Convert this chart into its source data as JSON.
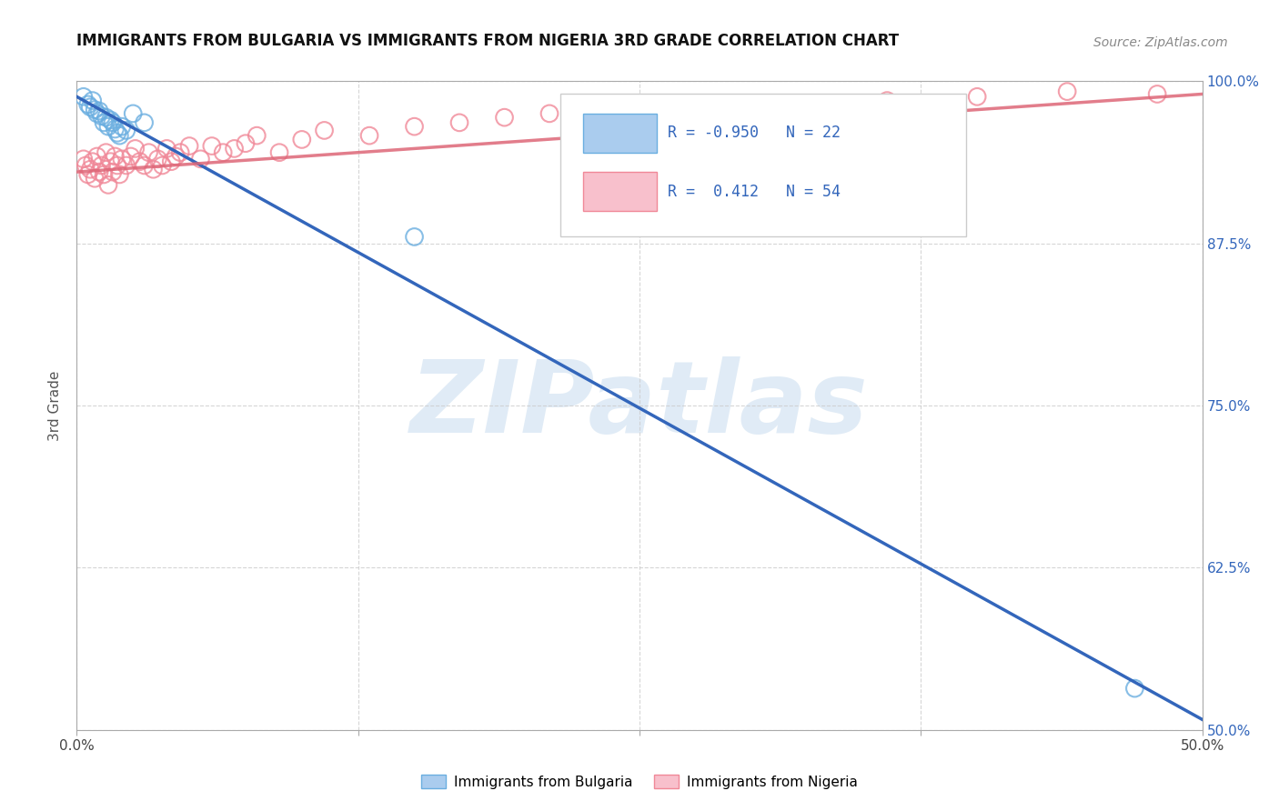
{
  "title": "IMMIGRANTS FROM BULGARIA VS IMMIGRANTS FROM NIGERIA 3RD GRADE CORRELATION CHART",
  "source": "Source: ZipAtlas.com",
  "ylabel": "3rd Grade",
  "x_min": 0.0,
  "x_max": 0.5,
  "y_min": 0.5,
  "y_max": 1.0,
  "x_ticks": [
    0.0,
    0.125,
    0.25,
    0.375,
    0.5
  ],
  "x_tick_labels": [
    "0.0%",
    "",
    "",
    "",
    "50.0%"
  ],
  "y_ticks": [
    0.5,
    0.625,
    0.75,
    0.875,
    1.0
  ],
  "y_tick_labels": [
    "50.0%",
    "62.5%",
    "75.0%",
    "87.5%",
    "100.0%"
  ],
  "blue_R": -0.95,
  "blue_N": 22,
  "pink_R": 0.412,
  "pink_N": 54,
  "blue_color": "#6aaee0",
  "pink_color": "#f08898",
  "blue_line_color": "#3366bb",
  "pink_line_color": "#dd6677",
  "watermark": "ZIPatlas",
  "watermark_color": "#ccdff0",
  "blue_legend_face": "#aaccee",
  "blue_legend_edge": "#6aaee0",
  "pink_legend_face": "#f8c0cc",
  "pink_legend_edge": "#f08898",
  "blue_scatter_x": [
    0.003,
    0.005,
    0.006,
    0.007,
    0.008,
    0.009,
    0.01,
    0.011,
    0.012,
    0.013,
    0.014,
    0.015,
    0.016,
    0.017,
    0.018,
    0.019,
    0.02,
    0.022,
    0.025,
    0.03,
    0.15,
    0.47
  ],
  "blue_scatter_y": [
    0.988,
    0.982,
    0.98,
    0.985,
    0.978,
    0.975,
    0.977,
    0.973,
    0.968,
    0.972,
    0.965,
    0.97,
    0.968,
    0.963,
    0.96,
    0.958,
    0.965,
    0.962,
    0.975,
    0.968,
    0.88,
    0.532
  ],
  "pink_scatter_x": [
    0.003,
    0.004,
    0.005,
    0.006,
    0.007,
    0.008,
    0.009,
    0.01,
    0.011,
    0.012,
    0.013,
    0.014,
    0.015,
    0.016,
    0.017,
    0.018,
    0.019,
    0.02,
    0.022,
    0.024,
    0.026,
    0.028,
    0.03,
    0.032,
    0.034,
    0.036,
    0.038,
    0.04,
    0.042,
    0.044,
    0.046,
    0.05,
    0.055,
    0.06,
    0.065,
    0.07,
    0.075,
    0.08,
    0.09,
    0.1,
    0.11,
    0.13,
    0.15,
    0.17,
    0.19,
    0.21,
    0.24,
    0.27,
    0.3,
    0.33,
    0.36,
    0.4,
    0.44,
    0.48
  ],
  "pink_scatter_y": [
    0.94,
    0.935,
    0.928,
    0.932,
    0.938,
    0.925,
    0.942,
    0.93,
    0.935,
    0.928,
    0.945,
    0.92,
    0.938,
    0.93,
    0.942,
    0.935,
    0.928,
    0.94,
    0.935,
    0.942,
    0.948,
    0.938,
    0.935,
    0.945,
    0.932,
    0.94,
    0.935,
    0.948,
    0.938,
    0.942,
    0.945,
    0.95,
    0.94,
    0.95,
    0.945,
    0.948,
    0.952,
    0.958,
    0.945,
    0.955,
    0.962,
    0.958,
    0.965,
    0.968,
    0.972,
    0.975,
    0.978,
    0.98,
    0.975,
    0.982,
    0.985,
    0.988,
    0.992,
    0.99
  ],
  "blue_trend_x": [
    0.0,
    0.5
  ],
  "blue_trend_y": [
    0.988,
    0.508
  ],
  "pink_trend_x": [
    0.0,
    0.5
  ],
  "pink_trend_y": [
    0.93,
    0.99
  ]
}
